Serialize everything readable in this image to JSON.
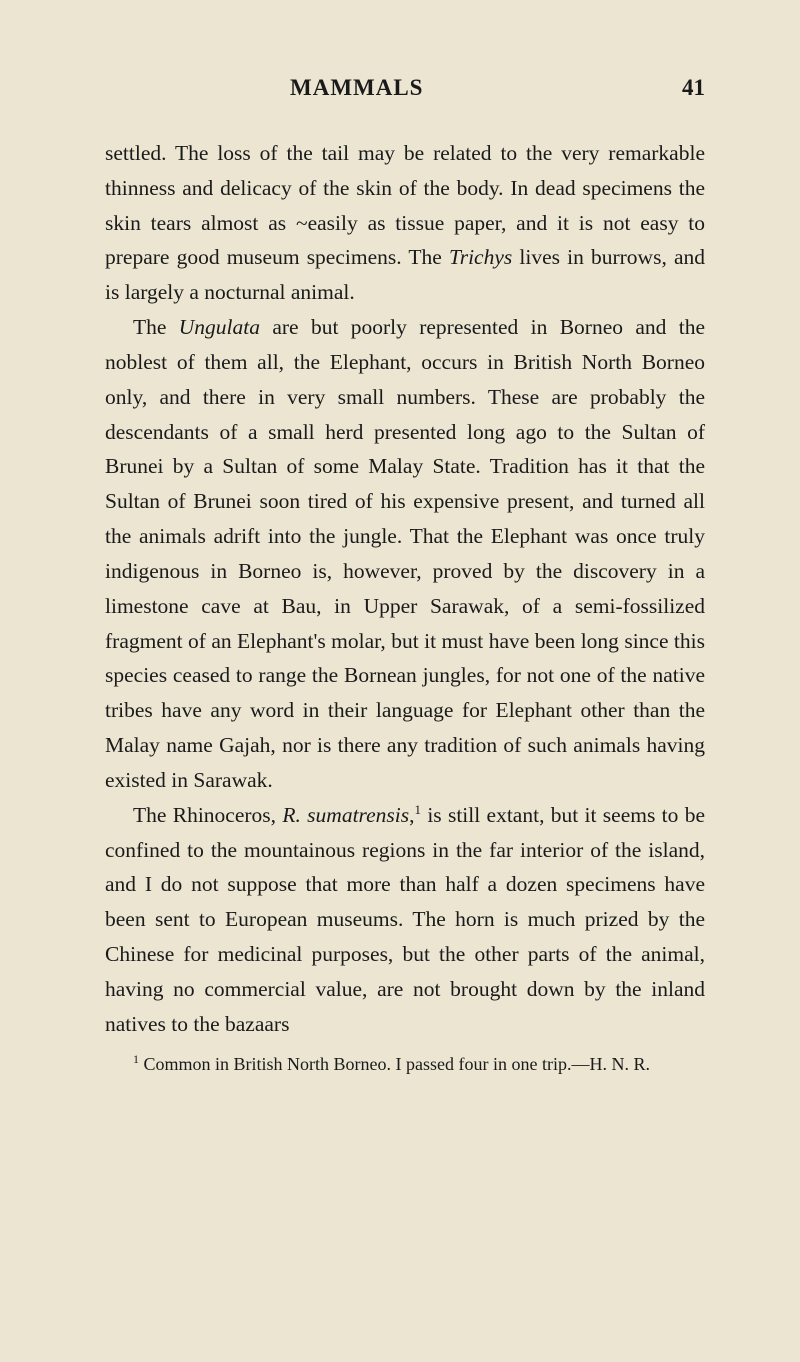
{
  "page": {
    "header_title": "MAMMALS",
    "page_number": "41",
    "background_color": "#ebe5d2",
    "text_color": "#1a1a1a",
    "font_family": "Georgia, serif",
    "body_fontsize": 21.5,
    "body_lineheight": 1.62,
    "header_fontsize": 23,
    "footnote_fontsize": 18
  },
  "paragraphs": {
    "p1_part1": "settled. The loss of the tail may be related to the very remarkable thinness and delicacy of the skin of the body. In dead specimens the skin tears almost as ",
    "p1_mark": "~",
    "p1_part2": "easily as tissue paper, and it is not easy to prepare good museum specimens. The ",
    "p1_italic1": "Trichys",
    "p1_part3": " lives in burrows, and is largely a nocturnal animal.",
    "p2_part1": "The ",
    "p2_italic1": "Ungulata",
    "p2_part2": " are but poorly represented in Borneo and the noblest of them all, the Elephant, occurs in British North Borneo only, and there in very small numbers. These are probably the descendants of a small herd presented long ago to the Sultan of Brunei by a Sultan of some Malay State. Tradition has it that the Sultan of Brunei soon tired of his expensive present, and turned all the animals adrift into the jungle. That the Elephant was once truly indigenous in Borneo is, however, proved by the discovery in a limestone cave at Bau, in Upper Sarawak, of a semi-fossilized fragment of an Elephant's molar, but it must have been long since this species ceased to range the Bornean jungles, for not one of the native tribes have any word in their language for Elephant other than the Malay name Gajah, nor is there any tradition of such animals having existed in Sarawak.",
    "p3_part1": "The Rhinoceros, ",
    "p3_italic1": "R. sumatrensis",
    "p3_part2": ",",
    "p3_sup1": "1",
    "p3_part3": " is still extant, but it seems to be confined to the mountainous regions in the far interior of the island, and I do not suppose that more than half a dozen specimens have been sent to European museums. The horn is much prized by the Chinese for medicinal purposes, but the other parts of the animal, having no commercial value, are not brought down by the inland natives to the bazaars"
  },
  "footnote": {
    "sup": "1",
    "text": " Common in British North Borneo. I passed four in one trip.—H. N. R."
  }
}
